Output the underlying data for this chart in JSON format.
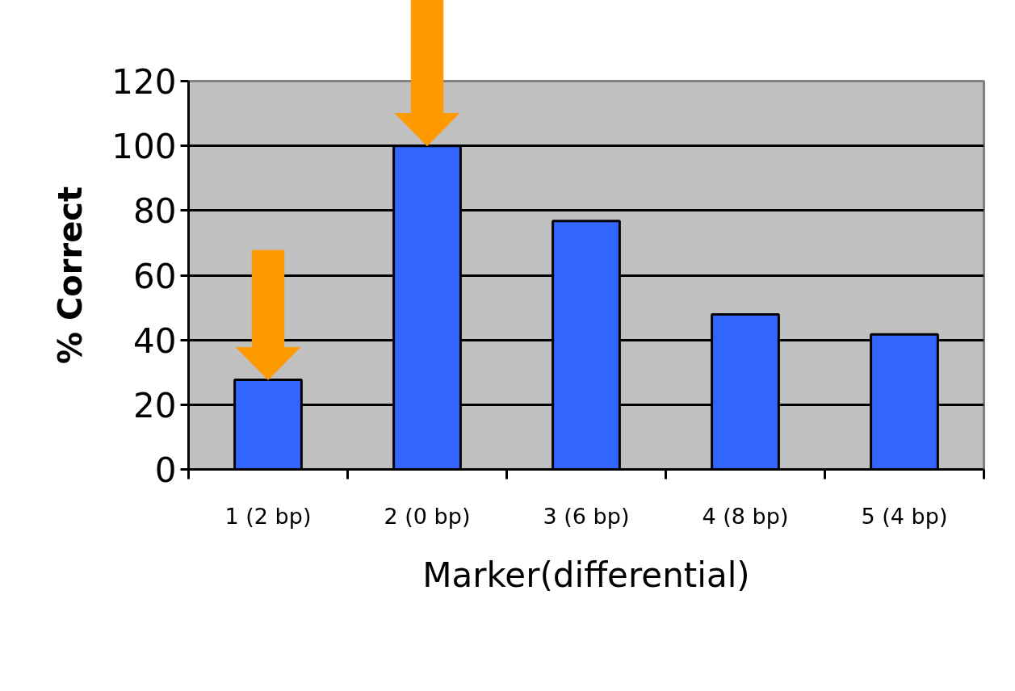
{
  "chart_data": {
    "type": "bar",
    "xlabel": "Marker(differential)",
    "ylabel": "% Correct",
    "categories": [
      "1 (2 bp)",
      "2 (0 bp)",
      "3 (6 bp)",
      "4 (8 bp)",
      "5 (4 bp)"
    ],
    "values": [
      27.7,
      100,
      76.8,
      47.9,
      41.7
    ],
    "color": "#3366ff",
    "ylim": [
      0,
      120
    ],
    "yticks": [
      0,
      20,
      40,
      60,
      80,
      100,
      120
    ],
    "grid": "y"
  }
}
